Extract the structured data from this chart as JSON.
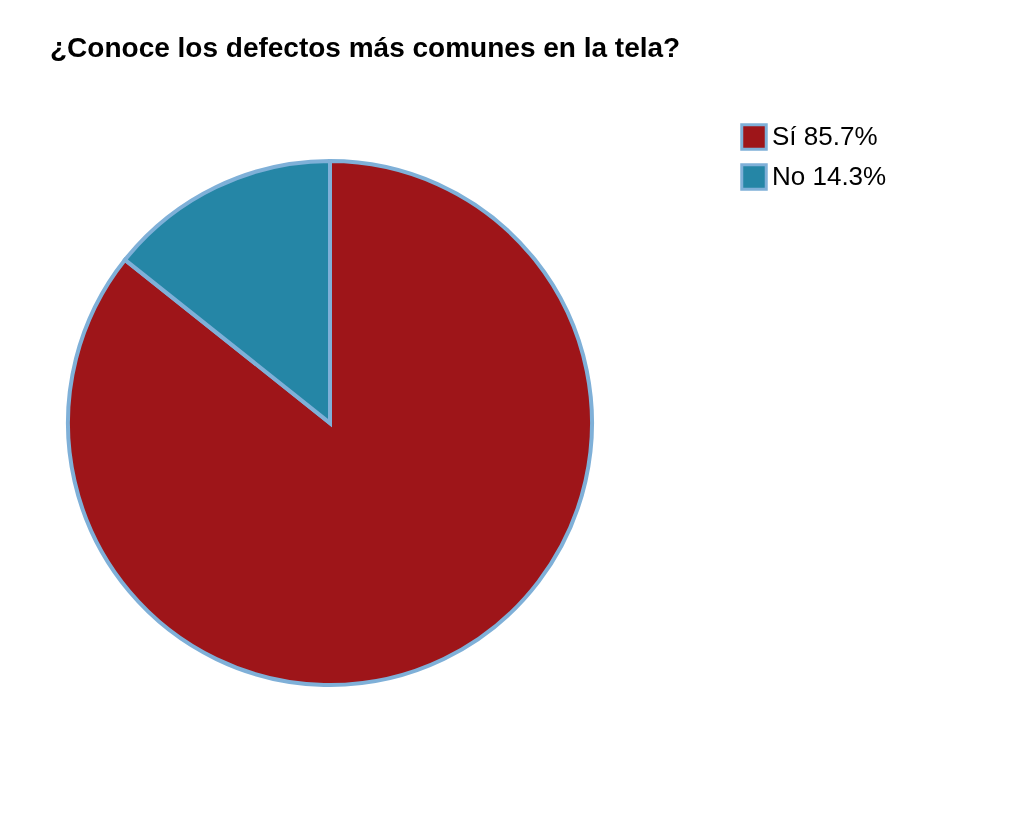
{
  "chart_data": {
    "type": "pie",
    "title": "¿Conoce los defectos más comunes en la tela?",
    "categories": [
      "Sí 85.7%",
      "No 14.3%"
    ],
    "values": [
      85.7,
      14.3
    ],
    "colors": [
      "#9e1519",
      "#2586a6"
    ],
    "legend": "right"
  }
}
